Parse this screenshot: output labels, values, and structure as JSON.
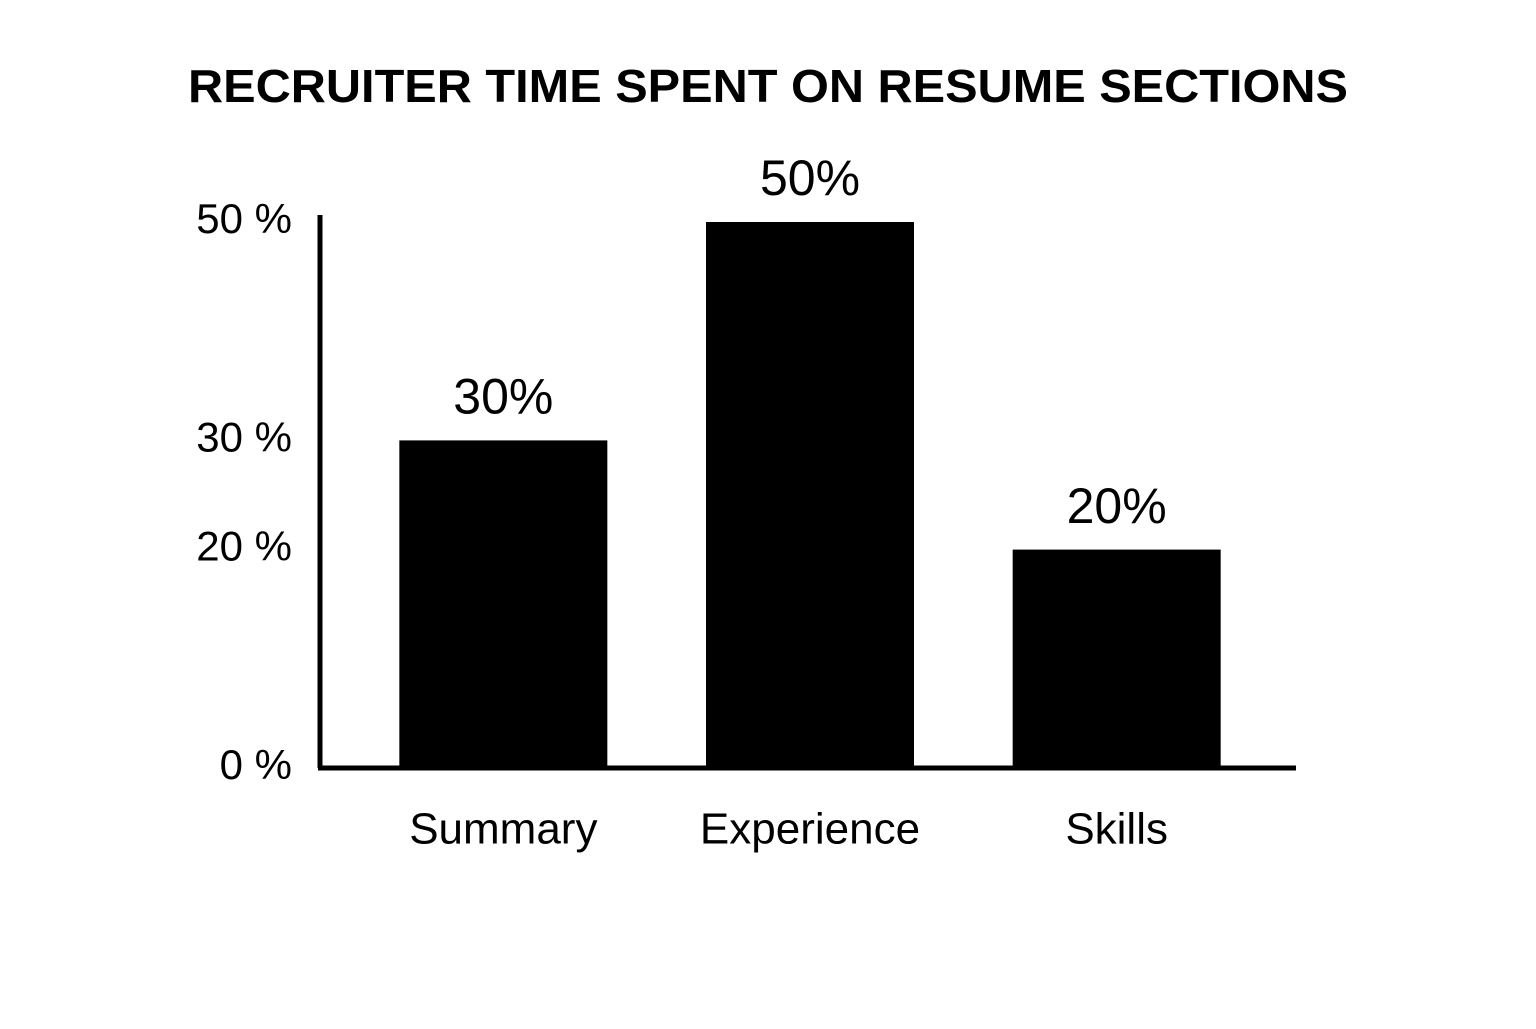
{
  "chart_data": {
    "type": "bar",
    "title": "RECRUITER TIME SPENT ON RESUME SECTIONS",
    "categories": [
      "Summary",
      "Experience",
      "Skills"
    ],
    "values": [
      30,
      50,
      20
    ],
    "value_labels": [
      "30%",
      "50%",
      "20%"
    ],
    "color": "#000000",
    "ylim": [
      0,
      50
    ],
    "yticks": [
      {
        "value": 0,
        "label": "0 %"
      },
      {
        "value": 20,
        "label": "20 %"
      },
      {
        "value": 30,
        "label": "30 %"
      },
      {
        "value": 50,
        "label": "50 %"
      }
    ],
    "grid": false
  }
}
